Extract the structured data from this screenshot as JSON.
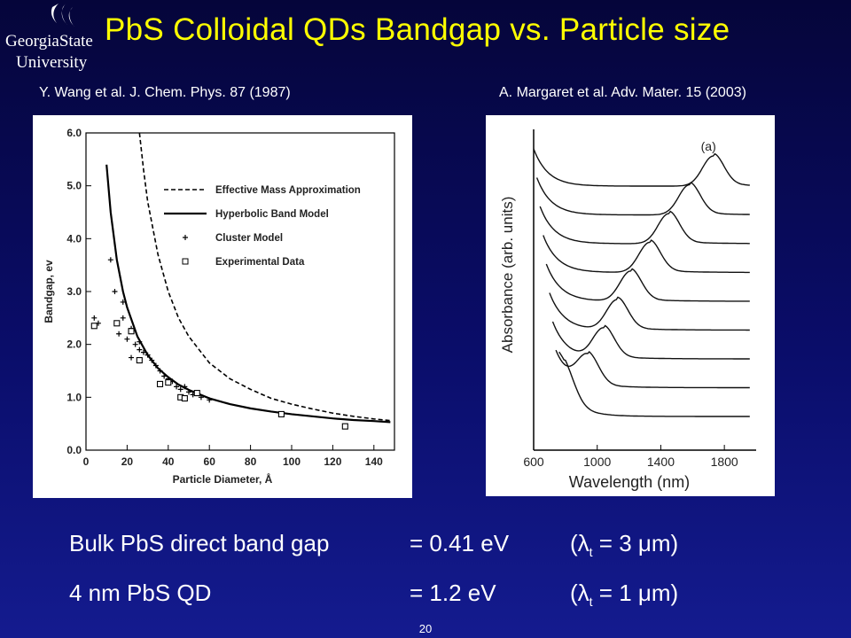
{
  "logo": {
    "line1": "GeorgiaState",
    "line2": "University"
  },
  "title": "PbS Colloidal QDs Bandgap vs. Particle size",
  "citations": {
    "left": "Y. Wang et al. J. Chem. Phys. 87 (1987)",
    "right": "A. Margaret et al. Adv. Mater. 15 (2003)"
  },
  "colors": {
    "title": "#ffff00",
    "background_top": "#05053a",
    "background_bottom": "#141b8f"
  },
  "chart_data": [
    {
      "type": "line",
      "title": "",
      "xlabel": "Particle Diameter, Å",
      "ylabel": "Bandgap, ev",
      "xlim": [
        0,
        150
      ],
      "ylim": [
        0,
        6
      ],
      "x_ticks": [
        0,
        20,
        40,
        60,
        80,
        100,
        120,
        140
      ],
      "y_ticks": [
        0.0,
        1.0,
        2.0,
        3.0,
        4.0,
        5.0,
        6.0
      ],
      "legend_position": "top-right",
      "series": [
        {
          "name": "Effective Mass Approximation",
          "style": "dashed",
          "x": [
            26,
            28,
            30,
            35,
            40,
            45,
            50,
            60,
            70,
            80,
            90,
            100,
            110,
            120,
            130,
            140,
            148
          ],
          "y": [
            6.0,
            5.3,
            4.7,
            3.7,
            3.0,
            2.5,
            2.15,
            1.65,
            1.35,
            1.15,
            0.98,
            0.87,
            0.78,
            0.7,
            0.64,
            0.59,
            0.56
          ]
        },
        {
          "name": "Hyperbolic Band Model",
          "style": "solid",
          "x": [
            10,
            12,
            15,
            18,
            20,
            25,
            30,
            35,
            40,
            45,
            50,
            60,
            70,
            80,
            90,
            100,
            110,
            120,
            130,
            140,
            148
          ],
          "y": [
            5.4,
            4.5,
            3.6,
            3.0,
            2.7,
            2.15,
            1.8,
            1.55,
            1.38,
            1.24,
            1.14,
            0.98,
            0.87,
            0.79,
            0.73,
            0.68,
            0.64,
            0.6,
            0.57,
            0.55,
            0.53
          ]
        },
        {
          "name": "Cluster Model",
          "style": "plus",
          "x": [
            4,
            6,
            12,
            14,
            16,
            18,
            20,
            22,
            24,
            26,
            28,
            30,
            32,
            34,
            36,
            38,
            40,
            42,
            44,
            46,
            48,
            50,
            52,
            56,
            60,
            18,
            22,
            26
          ],
          "y": [
            2.5,
            2.4,
            3.6,
            3.0,
            2.2,
            2.5,
            2.1,
            2.3,
            2.0,
            1.9,
            1.85,
            1.8,
            1.7,
            1.6,
            1.5,
            1.4,
            1.35,
            1.3,
            1.2,
            1.15,
            1.2,
            1.1,
            1.05,
            1.0,
            0.95,
            2.8,
            1.75,
            2.05
          ]
        },
        {
          "name": "Experimental Data",
          "style": "square",
          "x": [
            4,
            15,
            22,
            26,
            36,
            40,
            46,
            48,
            54,
            95,
            126
          ],
          "y": [
            2.35,
            2.4,
            2.25,
            1.7,
            1.25,
            1.28,
            1.0,
            0.98,
            1.08,
            0.68,
            0.45
          ]
        }
      ]
    },
    {
      "type": "line",
      "title": "",
      "panel_label": "(a)",
      "xlabel": "Wavelength (nm)",
      "ylabel": "Absorbance  (arb. units)",
      "xlim": [
        600,
        2000
      ],
      "x_ticks": [
        600,
        1000,
        1400,
        1800
      ],
      "series": [
        {
          "peak": 1730
        },
        {
          "peak": 1580
        },
        {
          "peak": 1450
        },
        {
          "peak": 1330
        },
        {
          "peak": 1210
        },
        {
          "peak": 1125
        },
        {
          "peak": 1040
        },
        {
          "peak": 940
        },
        {
          "peak": 790
        }
      ]
    }
  ],
  "summary": {
    "row1": {
      "label": "Bulk PbS direct band gap",
      "value": "= 0.41 eV",
      "lambda_pre": "(λ",
      "lambda_sub": "t",
      "lambda_post": " = 3 μm)"
    },
    "row2": {
      "label": "4 nm PbS QD",
      "value": "= 1.2 eV",
      "lambda_pre": "(λ",
      "lambda_sub": "t",
      "lambda_post": " = 1 μm)"
    }
  },
  "slide_number": "20"
}
